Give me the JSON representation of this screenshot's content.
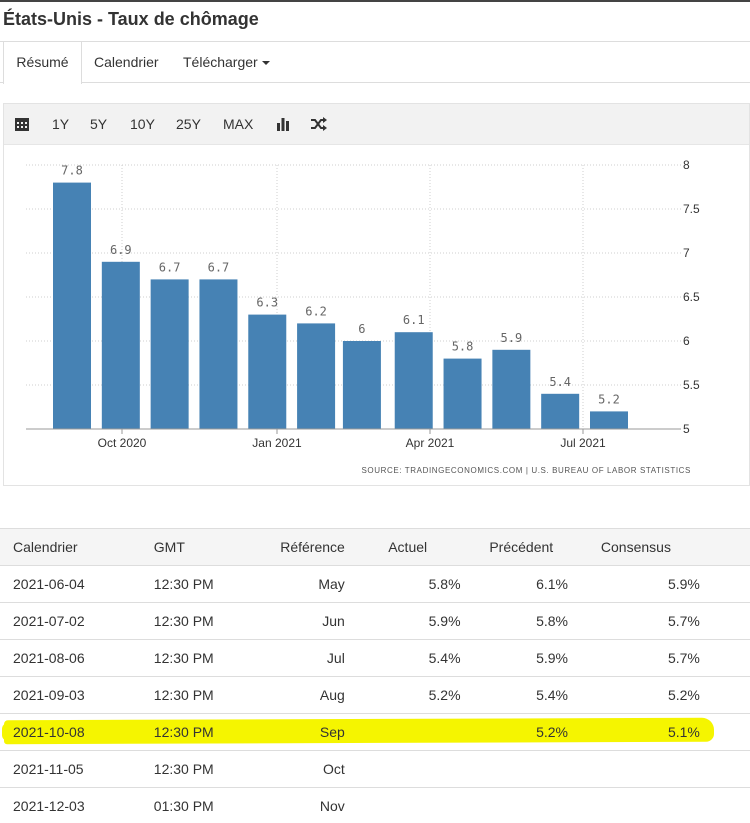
{
  "page": {
    "title": "États-Unis - Taux de chômage"
  },
  "tabs": {
    "summary": "Résumé",
    "calendar": "Calendrier",
    "download": "Télécharger"
  },
  "toolbar": {
    "calendar_icon": "calendar-icon",
    "ranges": [
      "1Y",
      "5Y",
      "10Y",
      "25Y",
      "MAX"
    ],
    "chart_type_icon": "bar-chart-icon",
    "compare_icon": "shuffle-icon"
  },
  "chart_data": {
    "type": "bar",
    "values": [
      7.8,
      6.9,
      6.7,
      6.7,
      6.3,
      6.2,
      6.0,
      6.1,
      5.8,
      5.9,
      5.4,
      5.2
    ],
    "data_labels": [
      "7.8",
      "6.9",
      "6.7",
      "6.7",
      "6.3",
      "6.2",
      "6",
      "6.1",
      "5.8",
      "5.9",
      "5.4",
      "5.2"
    ],
    "x_ticks": [
      "Oct 2020",
      "Jan 2021",
      "Apr 2021",
      "Jul 2021"
    ],
    "y_ticks": [
      "8",
      "7.5",
      "7",
      "6.5",
      "6",
      "5.5",
      "5"
    ],
    "ylim": [
      5,
      8
    ],
    "grid": true,
    "color": "#4682b4",
    "source": "SOURCE: TRADINGECONOMICS.COM | U.S. BUREAU OF LABOR STATISTICS"
  },
  "table": {
    "headers": [
      "Calendrier",
      "GMT",
      "Référence",
      "Actuel",
      "Précédent",
      "Consensus"
    ],
    "rows": [
      [
        "2021-06-04",
        "12:30 PM",
        "May",
        "5.8%",
        "6.1%",
        "5.9%"
      ],
      [
        "2021-07-02",
        "12:30 PM",
        "Jun",
        "5.9%",
        "5.8%",
        "5.7%"
      ],
      [
        "2021-08-06",
        "12:30 PM",
        "Jul",
        "5.4%",
        "5.9%",
        "5.7%"
      ],
      [
        "2021-09-03",
        "12:30 PM",
        "Aug",
        "5.2%",
        "5.4%",
        "5.2%"
      ],
      [
        "2021-10-08",
        "12:30 PM",
        "Sep",
        "",
        "5.2%",
        "5.1%"
      ],
      [
        "2021-11-05",
        "12:30 PM",
        "Oct",
        "",
        "",
        ""
      ],
      [
        "2021-12-03",
        "01:30 PM",
        "Nov",
        "",
        "",
        ""
      ]
    ],
    "highlight_color": "#f5f500"
  }
}
